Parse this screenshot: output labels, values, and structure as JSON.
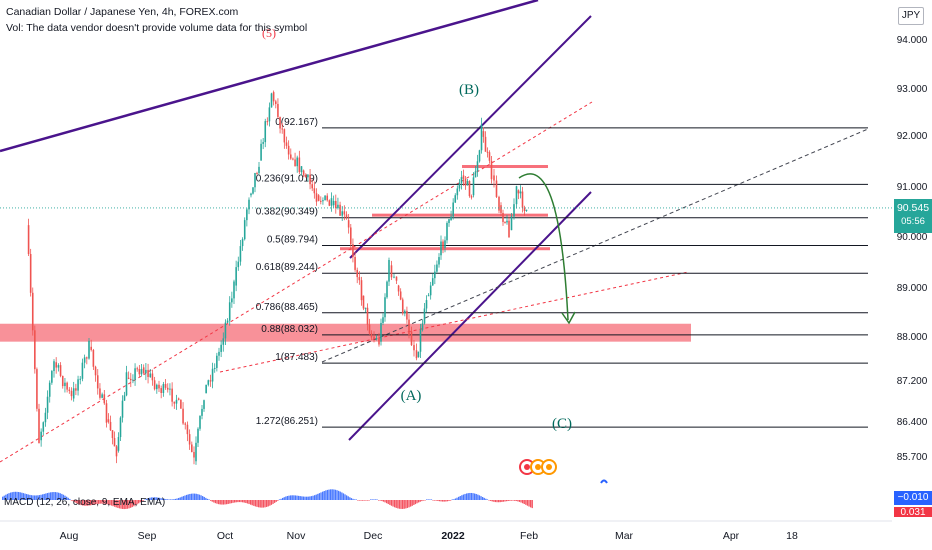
{
  "header": {
    "symbol_title": "Canadian Dollar / Japanese Yen, 4h, FOREX.com",
    "volume_note": "Vol: The data vendor doesn't provide volume data for this symbol"
  },
  "currency_badge": "JPY",
  "last_price": {
    "value": "90.545",
    "countdown": "05:56",
    "color": "#26a69a"
  },
  "macd": {
    "label": "MACD (12, 26, close, 9, EMA, EMA)",
    "value_1": "−0.010",
    "value_2": "0.031",
    "positive_color": "#2962ff",
    "negative_color": "#f23645"
  },
  "chart_data": {
    "type": "line",
    "title": "Canadian Dollar / Japanese Yen, 4h, FOREX.com",
    "price_axis": {
      "ticks": [
        "94.000",
        "93.000",
        "92.000",
        "91.000",
        "90.000",
        "89.000",
        "88.000",
        "87.200",
        "86.400",
        "85.700"
      ],
      "tick_values": [
        94.0,
        93.0,
        92.0,
        91.0,
        90.0,
        89.0,
        88.0,
        87.2,
        86.4,
        85.7
      ],
      "scale": "log"
    },
    "time_axis": {
      "labels": [
        "Aug",
        "Sep",
        "Oct",
        "Nov",
        "Dec",
        "2022",
        "Feb",
        "Mar",
        "Apr",
        "18"
      ]
    },
    "price_series": {
      "name": "CADJPY",
      "points": [
        [
          "2021-07-15",
          90.2
        ],
        [
          "2021-07-20",
          86.0
        ],
        [
          "2021-07-26",
          87.5
        ],
        [
          "2021-08-02",
          86.8
        ],
        [
          "2021-08-09",
          87.8
        ],
        [
          "2021-08-16",
          86.4
        ],
        [
          "2021-08-20",
          85.8
        ],
        [
          "2021-08-24",
          87.2
        ],
        [
          "2021-08-30",
          87.4
        ],
        [
          "2021-09-06",
          87.0
        ],
        [
          "2021-09-13",
          86.8
        ],
        [
          "2021-09-20",
          85.6
        ],
        [
          "2021-09-24",
          86.9
        ],
        [
          "2021-09-30",
          87.7
        ],
        [
          "2021-10-06",
          89.0
        ],
        [
          "2021-10-12",
          90.8
        ],
        [
          "2021-10-16",
          91.5
        ],
        [
          "2021-10-21",
          92.9
        ],
        [
          "2021-10-27",
          91.8
        ],
        [
          "2021-11-02",
          91.3
        ],
        [
          "2021-11-08",
          90.8
        ],
        [
          "2021-11-14",
          90.6
        ],
        [
          "2021-11-20",
          90.3
        ],
        [
          "2021-11-26",
          88.8
        ],
        [
          "2021-11-30",
          88.0
        ],
        [
          "2021-12-03",
          87.9
        ],
        [
          "2021-12-07",
          89.4
        ],
        [
          "2021-12-10",
          89.0
        ],
        [
          "2021-12-15",
          88.1
        ],
        [
          "2021-12-18",
          87.6
        ],
        [
          "2021-12-22",
          88.8
        ],
        [
          "2021-12-27",
          89.6
        ],
        [
          "2021-12-31",
          90.3
        ],
        [
          "2022-01-05",
          91.2
        ],
        [
          "2022-01-09",
          90.8
        ],
        [
          "2022-01-13",
          92.1
        ],
        [
          "2022-01-17",
          91.2
        ],
        [
          "2022-01-20",
          90.6
        ],
        [
          "2022-01-24",
          90.1
        ],
        [
          "2022-01-27",
          90.9
        ],
        [
          "2022-01-31",
          90.5
        ]
      ]
    },
    "fibonacci": {
      "levels": [
        {
          "label": "0(92.167)",
          "value": 92.167
        },
        {
          "label": "0.236(91.019)",
          "value": 91.019
        },
        {
          "label": "0.382(90.349)",
          "value": 90.349
        },
        {
          "label": "0.5(89.794)",
          "value": 89.794
        },
        {
          "label": "0.618(89.244)",
          "value": 89.244
        },
        {
          "label": "0.786(88.465)",
          "value": 88.465
        },
        {
          "label": "0.88(88.032)",
          "value": 88.032
        },
        {
          "label": "1(87.483)",
          "value": 87.483
        },
        {
          "label": "1.272(86.251)",
          "value": 86.251
        }
      ]
    },
    "annotations": [
      {
        "text": "(B)",
        "color": "#00695c"
      },
      {
        "text": "(A)",
        "color": "#00695c"
      },
      {
        "text": "(C)",
        "color": "#00695c"
      },
      {
        "text": "(5)",
        "color": "#f23645"
      }
    ],
    "grid": false
  }
}
